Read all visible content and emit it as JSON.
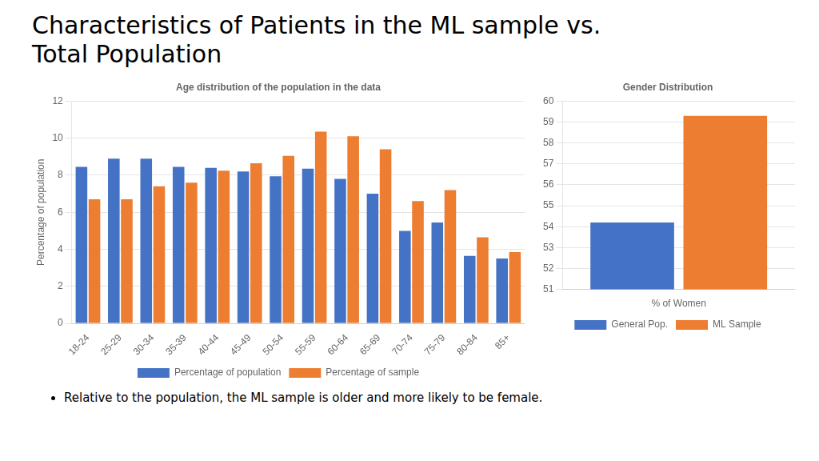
{
  "title": "Characteristics of Patients in the ML sample vs.\nTotal Population",
  "annotations": [
    "Relative to the population, the ML sample is older and more likely to be female."
  ],
  "chart_data": [
    {
      "type": "bar",
      "title": "Age distribution of the population in the data",
      "categories": [
        "18-24",
        "25-29",
        "30-34",
        "35-39",
        "40-44",
        "45-49",
        "50-54",
        "55-59",
        "60-64",
        "65-69",
        "70-74",
        "75-79",
        "80-84",
        "85+"
      ],
      "series": [
        {
          "name": "Percentage of population",
          "color": "#4472C4",
          "values": [
            8.45,
            8.9,
            8.9,
            8.45,
            8.4,
            8.2,
            7.95,
            8.35,
            7.8,
            7.0,
            5.0,
            5.45,
            3.65,
            3.5
          ]
        },
        {
          "name": "Percentage of sample",
          "color": "#ED7D31",
          "values": [
            6.7,
            6.7,
            7.4,
            7.6,
            8.25,
            8.65,
            9.05,
            10.35,
            10.1,
            9.4,
            6.6,
            7.2,
            4.65,
            3.85
          ]
        }
      ],
      "ylabel": "Percentage of population",
      "ylim": [
        0,
        12
      ],
      "yticks": [
        0,
        2,
        4,
        6,
        8,
        10,
        12
      ],
      "grid": true,
      "legend": "bottom"
    },
    {
      "type": "bar",
      "title": "Gender Distribution",
      "categories": [
        "% of Women"
      ],
      "series": [
        {
          "name": "General Pop.",
          "color": "#4472C4",
          "values": [
            54.2
          ]
        },
        {
          "name": "ML Sample",
          "color": "#ED7D31",
          "values": [
            59.3
          ]
        }
      ],
      "ylim": [
        51,
        60
      ],
      "yticks": [
        51,
        52,
        53,
        54,
        55,
        56,
        57,
        58,
        59,
        60
      ],
      "grid": true,
      "legend": "bottom"
    }
  ]
}
